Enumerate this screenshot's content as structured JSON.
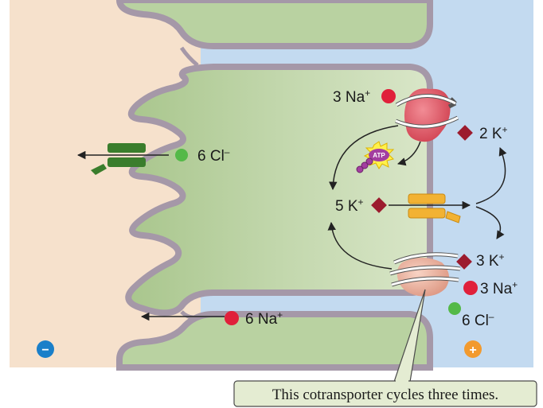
{
  "labels": {
    "na_pump": {
      "coef": "3 Na",
      "charge": "+"
    },
    "k_pump": {
      "coef": "2 K",
      "charge": "+"
    },
    "cl_channel": {
      "coef": "6 Cl",
      "charge": "–"
    },
    "k_cell": {
      "coef": "5 K",
      "charge": "+"
    },
    "k_cotransporter": {
      "coef": "3 K",
      "charge": "+"
    },
    "na_cotransporter": {
      "coef": "3 Na",
      "charge": "+"
    },
    "cl_cotransporter": {
      "coef": "6 Cl",
      "charge": "–"
    },
    "na_paracellular": {
      "coef": "6 Na",
      "charge": "+"
    },
    "atp": "ATP",
    "minus_sign": "−",
    "plus_sign": "+"
  },
  "callout": {
    "text": "This cotransporter cycles three times."
  },
  "colors": {
    "interstitial": "#f6e1cc",
    "lumen": "#c3daf0",
    "cell": "#b6d09c",
    "membrane": "#a598a8",
    "sodium": "#e0203a",
    "potassium": "#9c1b2e",
    "chloride": "#54b948",
    "pump": "#e35d6a",
    "channel_green": "#3a7d2c",
    "channel_orange": "#f2b233",
    "cotransporter": "#f0b7a3",
    "minus": "#1a7fc9",
    "plus": "#f29a2e"
  }
}
